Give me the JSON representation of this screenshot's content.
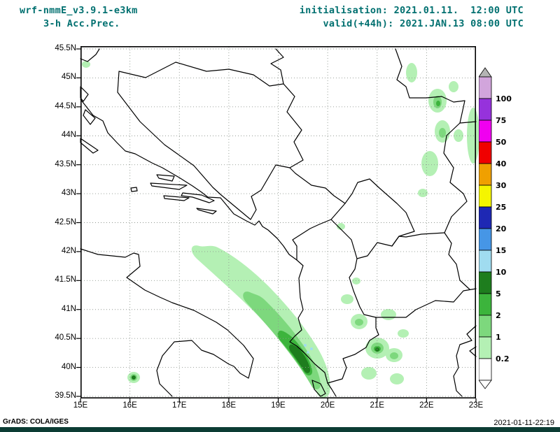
{
  "header": {
    "model": "wrf-nmmE_v3.9.1-e3km",
    "product": "3-h Acc.Prec.",
    "init": "initialisation: 2021.01.11.  12:00 UTC",
    "valid": "valid(+44h): 2021.JAN.13 08:00 UTC"
  },
  "map": {
    "lat_labels": [
      "45.5N",
      "45N",
      "44.5N",
      "44N",
      "43.5N",
      "43N",
      "42.5N",
      "42N",
      "41.5N",
      "41N",
      "40.5N",
      "40N",
      "39.5N"
    ],
    "lon_labels": [
      "15E",
      "16E",
      "17E",
      "18E",
      "19E",
      "20E",
      "21E",
      "22E",
      "23E"
    ]
  },
  "colorbar": {
    "levels": [
      "0.2",
      "1",
      "2",
      "5",
      "10",
      "15",
      "20",
      "25",
      "30",
      "40",
      "50",
      "75",
      "100"
    ],
    "colors": [
      "#ffffff",
      "#b4f0b4",
      "#7dd87d",
      "#3cb43c",
      "#1e7d1e",
      "#a0dcf0",
      "#4696e6",
      "#1e28b4",
      "#f5f500",
      "#f0a000",
      "#f00000",
      "#f000f0",
      "#9632dc",
      "#d2a5dc"
    ],
    "cap_color_top": "#b4b4b4",
    "cap_color_bottom": "#ffffff"
  },
  "footer": {
    "credit": "GrADS: COLA/IGES",
    "timestamp": "2021-01-11-22:19"
  },
  "colors": {
    "teal_text": "#007070",
    "grid": "#909890",
    "precip1": "#b4f0b4",
    "precip2": "#7dd87d",
    "precip3": "#3cb43c",
    "precip4": "#1e7d1e",
    "precip_blue": "#a0dcf0",
    "footer_bar": "#0c3c34"
  }
}
